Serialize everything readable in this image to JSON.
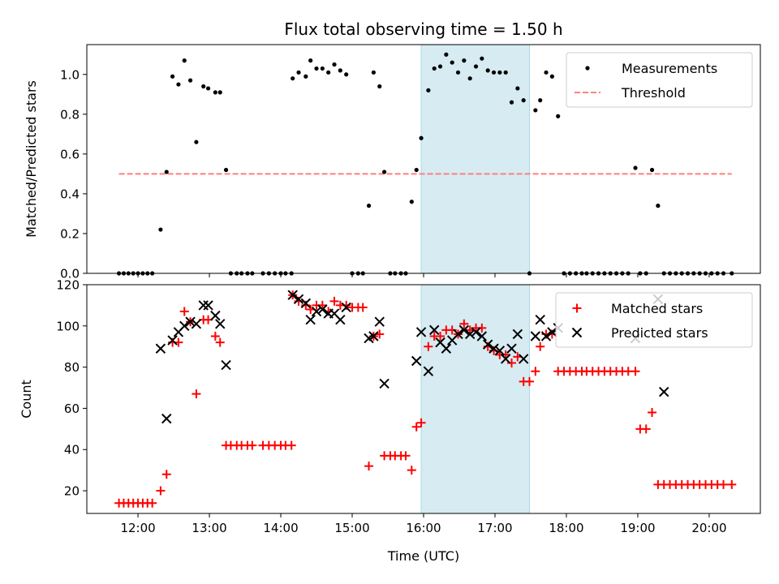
{
  "chart_data": [
    {
      "type": "scatter",
      "title": "Flux total observing time = 1.50 h",
      "xlabel": "",
      "ylabel": "Matched/Predicted stars",
      "ylim": [
        0.0,
        1.15
      ],
      "xlim": [
        "11:17",
        "20:43"
      ],
      "x_ticks": [
        "12:00",
        "13:00",
        "14:00",
        "15:00",
        "16:00",
        "17:00",
        "18:00",
        "19:00",
        "20:00"
      ],
      "y_ticks": [
        "0.0",
        "0.2",
        "0.4",
        "0.6",
        "0.8",
        "1.0"
      ],
      "highlight_span": [
        "15:58",
        "17:29"
      ],
      "legend": {
        "placement": "upper right",
        "entries": [
          "Measurements",
          "Threshold"
        ]
      },
      "threshold": {
        "name": "Threshold",
        "value": 0.5,
        "x_range": [
          "11:44",
          "20:19"
        ],
        "color": "#ff7f7f"
      },
      "series": [
        {
          "name": "Measurements",
          "marker": "dot",
          "color": "#000000",
          "x": [
            "11:44",
            "11:48",
            "11:52",
            "11:56",
            "12:00",
            "12:04",
            "12:08",
            "12:12",
            "12:19",
            "12:24",
            "12:29",
            "12:34",
            "12:39",
            "12:44",
            "12:49",
            "12:55",
            "12:59",
            "13:05",
            "13:09",
            "13:14",
            "13:18",
            "13:23",
            "13:27",
            "13:32",
            "13:36",
            "13:45",
            "13:50",
            "13:55",
            "14:00",
            "14:04",
            "14:09",
            "14:10",
            "14:15",
            "14:21",
            "14:25",
            "14:30",
            "14:35",
            "14:40",
            "14:45",
            "14:50",
            "14:55",
            "15:00",
            "15:05",
            "15:09",
            "15:14",
            "15:18",
            "15:23",
            "15:27",
            "15:32",
            "15:36",
            "15:41",
            "15:45",
            "15:50",
            "15:54",
            "15:58",
            "16:04",
            "16:09",
            "16:14",
            "16:19",
            "16:24",
            "16:29",
            "16:34",
            "16:39",
            "16:44",
            "16:49",
            "16:54",
            "16:59",
            "17:04",
            "17:09",
            "17:14",
            "17:19",
            "17:24",
            "17:29",
            "17:34",
            "17:38",
            "17:43",
            "17:48",
            "17:53",
            "17:58",
            "18:03",
            "18:08",
            "18:13",
            "18:17",
            "18:22",
            "18:27",
            "18:32",
            "18:37",
            "18:42",
            "18:47",
            "18:52",
            "18:58",
            "19:02",
            "19:07",
            "19:12",
            "19:17",
            "19:22",
            "19:27",
            "19:32",
            "19:37",
            "19:42",
            "19:47",
            "19:52",
            "19:57",
            "20:02",
            "20:07",
            "20:12",
            "20:19"
          ],
          "values": [
            0.0,
            0.0,
            0.0,
            0.0,
            0.0,
            0.0,
            0.0,
            0.0,
            0.22,
            0.51,
            0.99,
            0.95,
            1.07,
            0.97,
            0.66,
            0.94,
            0.93,
            0.91,
            0.91,
            0.52,
            0.0,
            0.0,
            0.0,
            0.0,
            0.0,
            0.0,
            0.0,
            0.0,
            0.0,
            0.0,
            0.0,
            0.98,
            1.01,
            0.99,
            1.07,
            1.03,
            1.03,
            1.01,
            1.05,
            1.02,
            1.0,
            0.0,
            0.0,
            0.0,
            0.34,
            1.01,
            0.94,
            0.51,
            0.0,
            0.0,
            0.0,
            0.0,
            0.36,
            0.52,
            0.68,
            0.92,
            1.03,
            1.04,
            1.1,
            1.06,
            1.01,
            1.07,
            0.98,
            1.04,
            1.08,
            1.02,
            1.01,
            1.01,
            1.01,
            0.86,
            0.93,
            0.87,
            0.0,
            0.82,
            0.87,
            1.01,
            0.99,
            0.79,
            0.0,
            0.0,
            0.0,
            0.0,
            0.0,
            0.0,
            0.0,
            0.0,
            0.0,
            0.0,
            0.0,
            0.0,
            0.53,
            0.0,
            0.0,
            0.52,
            0.34,
            0.0,
            0.0,
            0.0,
            0.0,
            0.0,
            0.0,
            0.0,
            0.0,
            0.0,
            0.0,
            0.0,
            0.0
          ]
        }
      ]
    },
    {
      "type": "scatter",
      "title": "",
      "xlabel": "Time (UTC)",
      "ylabel": "Count",
      "ylim": [
        9,
        120
      ],
      "xlim": [
        "11:17",
        "20:43"
      ],
      "x_ticks": [
        "12:00",
        "13:00",
        "14:00",
        "15:00",
        "16:00",
        "17:00",
        "18:00",
        "19:00",
        "20:00"
      ],
      "y_ticks": [
        "20",
        "40",
        "60",
        "80",
        "100",
        "120"
      ],
      "highlight_span": [
        "15:58",
        "17:29"
      ],
      "legend": {
        "placement": "upper right",
        "entries": [
          "Matched stars",
          "Predicted stars"
        ]
      },
      "series": [
        {
          "name": "Matched stars",
          "marker": "plus",
          "color": "#ff0000",
          "x": [
            "11:44",
            "11:48",
            "11:52",
            "11:56",
            "12:00",
            "12:04",
            "12:08",
            "12:12",
            "12:19",
            "12:24",
            "12:29",
            "12:34",
            "12:39",
            "12:44",
            "12:49",
            "12:55",
            "12:59",
            "13:05",
            "13:09",
            "13:14",
            "13:18",
            "13:23",
            "13:27",
            "13:32",
            "13:36",
            "13:45",
            "13:50",
            "13:55",
            "14:00",
            "14:04",
            "14:09",
            "14:10",
            "14:15",
            "14:21",
            "14:25",
            "14:30",
            "14:35",
            "14:40",
            "14:45",
            "14:50",
            "14:55",
            "15:00",
            "15:05",
            "15:09",
            "15:14",
            "15:18",
            "15:23",
            "15:27",
            "15:32",
            "15:36",
            "15:41",
            "15:45",
            "15:50",
            "15:54",
            "15:58",
            "16:04",
            "16:09",
            "16:14",
            "16:19",
            "16:24",
            "16:29",
            "16:34",
            "16:39",
            "16:44",
            "16:49",
            "16:54",
            "16:59",
            "17:04",
            "17:09",
            "17:14",
            "17:19",
            "17:24",
            "17:29",
            "17:34",
            "17:38",
            "17:43",
            "17:48",
            "17:53",
            "17:58",
            "18:03",
            "18:08",
            "18:13",
            "18:17",
            "18:22",
            "18:27",
            "18:32",
            "18:37",
            "18:42",
            "18:47",
            "18:52",
            "18:58",
            "19:02",
            "19:07",
            "19:12",
            "19:17",
            "19:22",
            "19:27",
            "19:32",
            "19:37",
            "19:42",
            "19:47",
            "19:52",
            "19:57",
            "20:02",
            "20:07",
            "20:12",
            "20:19"
          ],
          "values": [
            14,
            14,
            14,
            14,
            14,
            14,
            14,
            14,
            20,
            28,
            92,
            92,
            107,
            102,
            67,
            103,
            103,
            95,
            92,
            42,
            42,
            42,
            42,
            42,
            42,
            42,
            42,
            42,
            42,
            42,
            42,
            115,
            112,
            110,
            108,
            110,
            110,
            107,
            112,
            110,
            110,
            109,
            109,
            109,
            32,
            95,
            96,
            37,
            37,
            37,
            37,
            37,
            30,
            51,
            53,
            90,
            95,
            95,
            98,
            98,
            96,
            101,
            98,
            99,
            99,
            90,
            88,
            86,
            86,
            82,
            85,
            73,
            73,
            78,
            90,
            96,
            96,
            78,
            78,
            78,
            78,
            78,
            78,
            78,
            78,
            78,
            78,
            78,
            78,
            78,
            78,
            50,
            50,
            58,
            23,
            23,
            23,
            23,
            23,
            23,
            23,
            23,
            23,
            23,
            23,
            23,
            23
          ]
        },
        {
          "name": "Predicted stars",
          "marker": "x",
          "color": "#000000",
          "x": [
            "12:19",
            "12:24",
            "12:29",
            "12:34",
            "12:39",
            "12:44",
            "12:49",
            "12:55",
            "12:59",
            "13:05",
            "13:09",
            "13:14",
            "14:10",
            "14:15",
            "14:21",
            "14:25",
            "14:30",
            "14:35",
            "14:40",
            "14:45",
            "14:50",
            "14:55",
            "15:14",
            "15:18",
            "15:23",
            "15:27",
            "15:54",
            "15:58",
            "16:04",
            "16:09",
            "16:14",
            "16:19",
            "16:24",
            "16:29",
            "16:34",
            "16:39",
            "16:44",
            "16:49",
            "16:54",
            "16:59",
            "17:04",
            "17:09",
            "17:14",
            "17:19",
            "17:24",
            "17:34",
            "17:38",
            "17:43",
            "17:48",
            "17:53",
            "18:58",
            "19:17",
            "19:22"
          ],
          "values": [
            89,
            55,
            93,
            97,
            100,
            102,
            101,
            110,
            110,
            105,
            101,
            81,
            115,
            113,
            111,
            103,
            107,
            108,
            106,
            106,
            103,
            109,
            94,
            95,
            102,
            72,
            83,
            97,
            78,
            98,
            92,
            89,
            93,
            96,
            98,
            96,
            97,
            95,
            91,
            89,
            88,
            84,
            89,
            96,
            84,
            95,
            103,
            95,
            97,
            99,
            94,
            113,
            68
          ]
        }
      ]
    }
  ]
}
